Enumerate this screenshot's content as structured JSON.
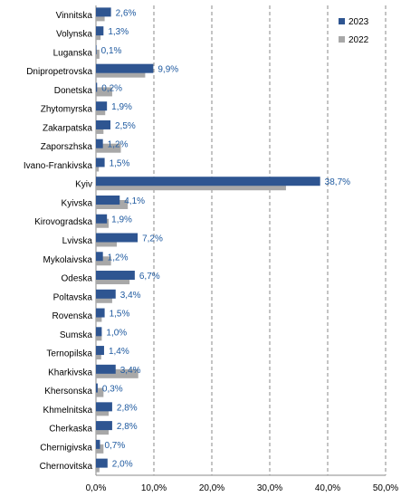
{
  "chart_data": {
    "type": "bar",
    "orientation": "horizontal",
    "categories": [
      "Vinnitska",
      "Volynska",
      "Luganska",
      "Dnipropetrovska",
      "Donetska",
      "Zhytomyrska",
      "Zakarpatska",
      "Zaporszhska",
      "Ivano-Frankivska",
      "Kyiv",
      "Kyivska",
      "Kirovogradska",
      "Lvivska",
      "Mykolaivska",
      "Odeska",
      "Poltavska",
      "Rovenska",
      "Sumska",
      "Ternopilska",
      "Kharkivska",
      "Khersonska",
      "Khmelnitska",
      "Cherkaska",
      "Chernigivska",
      "Chernovitska"
    ],
    "series": [
      {
        "name": "2023",
        "color": "#2e5591",
        "values": [
          2.6,
          1.3,
          0.1,
          9.9,
          0.2,
          1.9,
          2.5,
          1.2,
          1.5,
          38.7,
          4.1,
          1.9,
          7.2,
          1.2,
          6.7,
          3.4,
          1.5,
          1.0,
          1.4,
          3.4,
          0.3,
          2.8,
          2.8,
          0.7,
          2.0
        ]
      },
      {
        "name": "2022",
        "color": "#a8a8a8",
        "values": [
          1.5,
          0.8,
          0.6,
          8.5,
          2.8,
          1.6,
          1.3,
          4.3,
          0.5,
          32.8,
          5.5,
          2.2,
          3.6,
          2.6,
          5.8,
          2.8,
          1.0,
          1.0,
          0.9,
          7.3,
          1.3,
          2.2,
          2.2,
          1.3,
          0.6
        ]
      }
    ],
    "data_labels": [
      "2,6%",
      "1,3%",
      "0,1%",
      "9,9%",
      "0,2%",
      "1,9%",
      "2,5%",
      "1,2%",
      "1,5%",
      "38,7%",
      "4,1%",
      "1,9%",
      "7,2%",
      "1,2%",
      "6,7%",
      "3,4%",
      "1,5%",
      "1,0%",
      "1,4%",
      "3,4%",
      "0,3%",
      "2,8%",
      "2,8%",
      "0,7%",
      "2,0%"
    ],
    "xlim": [
      0,
      50
    ],
    "x_ticks": [
      0,
      10,
      20,
      30,
      40,
      50
    ],
    "x_tick_labels": [
      "0,0%",
      "10,0%",
      "20,0%",
      "30,0%",
      "40,0%",
      "50,0%"
    ],
    "grid": "vertical dashed",
    "legend": "top-right",
    "title": "",
    "xlabel": "",
    "ylabel": ""
  }
}
